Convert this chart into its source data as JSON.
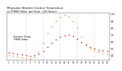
{
  "title": "Milwaukee Weather Outdoor Temperature vs THSW Index per Hour (24 Hours)",
  "title_fontsize": 2.8,
  "background_color": "#ffffff",
  "hours": [
    1,
    2,
    3,
    4,
    5,
    6,
    7,
    8,
    9,
    10,
    11,
    12,
    13,
    14,
    15,
    16,
    17,
    18,
    19,
    20,
    21,
    22,
    23,
    24
  ],
  "temp": [
    44,
    43,
    42,
    41,
    40,
    39,
    40,
    42,
    46,
    52,
    58,
    63,
    67,
    69,
    70,
    68,
    64,
    59,
    55,
    52,
    50,
    48,
    47,
    46
  ],
  "thsw": [
    40,
    39,
    38,
    37,
    36,
    35,
    37,
    45,
    58,
    72,
    82,
    90,
    96,
    99,
    97,
    90,
    80,
    67,
    57,
    50,
    47,
    45,
    43,
    42
  ],
  "temp_color": "#cc0000",
  "thsw_color": "#ff8800",
  "dot_size": 1.5,
  "ylim": [
    33,
    102
  ],
  "ytick_values": [
    40,
    50,
    60,
    70,
    80,
    90,
    100
  ],
  "ytick_fontsize": 2.5,
  "xtick_fontsize": 2.0,
  "grid_color": "#888888",
  "vlines": [
    5,
    9,
    13,
    17,
    21
  ],
  "legend_labels": [
    "Outdoor Temp",
    "THSW Index"
  ],
  "legend_colors": [
    "#cc0000",
    "#ff8800"
  ],
  "legend_fontsize": 2.5,
  "xtick_labels": [
    "1",
    "2",
    "3",
    "4",
    "5",
    "6",
    "7",
    "8",
    "9",
    "10",
    "11",
    "12",
    "13",
    "14",
    "15",
    "16",
    "17",
    "18",
    "19",
    "20",
    "21",
    "22",
    "23",
    "24"
  ]
}
